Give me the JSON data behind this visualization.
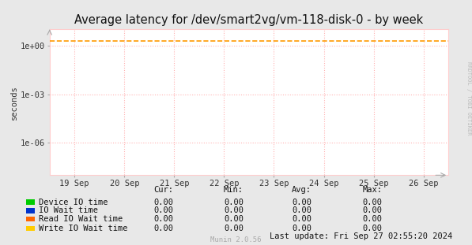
{
  "title": "Average latency for /dev/smart2vg/vm-118-disk-0 - by week",
  "ylabel": "seconds",
  "bg_color": "#e8e8e8",
  "plot_bg_color": "#ffffff",
  "grid_color": "#ffb3b3",
  "border_color": "#ffcccc",
  "x_ticks_labels": [
    "19 Sep",
    "20 Sep",
    "21 Sep",
    "22 Sep",
    "23 Sep",
    "24 Sep",
    "25 Sep",
    "26 Sep"
  ],
  "x_ticks_pos": [
    0.5,
    1.5,
    2.5,
    3.5,
    4.5,
    5.5,
    6.5,
    7.5
  ],
  "xlim": [
    0,
    8
  ],
  "dashed_line_y": 2.0,
  "dashed_line_color": "#ff9900",
  "legend_entries": [
    {
      "label": "Device IO time",
      "color": "#00cc00"
    },
    {
      "label": "IO Wait time",
      "color": "#0033cc"
    },
    {
      "label": "Read IO Wait time",
      "color": "#ff6600"
    },
    {
      "label": "Write IO Wait time",
      "color": "#ffcc00"
    }
  ],
  "table_headers": [
    "Cur:",
    "Min:",
    "Avg:",
    "Max:"
  ],
  "table_values": [
    [
      "0.00",
      "0.00",
      "0.00",
      "0.00"
    ],
    [
      "0.00",
      "0.00",
      "0.00",
      "0.00"
    ],
    [
      "0.00",
      "0.00",
      "0.00",
      "0.00"
    ],
    [
      "0.00",
      "0.00",
      "0.00",
      "0.00"
    ]
  ],
  "last_update": "Last update: Fri Sep 27 02:55:20 2024",
  "watermark": "Munin 2.0.56",
  "rrdtool_text": "RRDTOOL / TOBI OETIKER",
  "title_fontsize": 10.5,
  "axis_fontsize": 7.5,
  "legend_fontsize": 7.5,
  "table_fontsize": 7.5
}
